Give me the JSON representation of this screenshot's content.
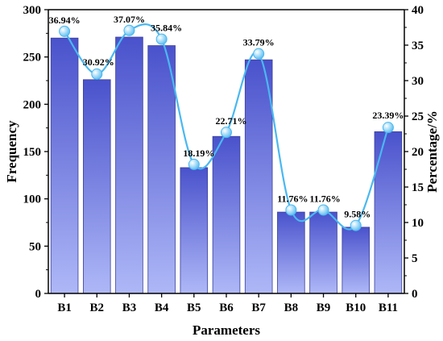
{
  "chart_data": {
    "type": "bar+line",
    "categories": [
      "B1",
      "B2",
      "B3",
      "B4",
      "B5",
      "B6",
      "B7",
      "B8",
      "B9",
      "B10",
      "B11"
    ],
    "series": [
      {
        "name": "Frequency",
        "type": "bar",
        "axis": "left",
        "values": [
          270,
          226,
          271,
          262,
          133,
          166,
          247,
          86,
          86,
          70,
          171
        ]
      },
      {
        "name": "Percentage/%",
        "type": "line",
        "axis": "right",
        "values": [
          36.94,
          30.92,
          37.07,
          35.84,
          18.19,
          22.71,
          33.79,
          11.76,
          11.76,
          9.58,
          23.39
        ],
        "labels": [
          "36.94%",
          "30.92%",
          "37.07%",
          "35.84%",
          "18.19%",
          "22.71%",
          "33.79%",
          "11.76%",
          "11.76%",
          "9.58%",
          "23.39%"
        ]
      }
    ],
    "xlabel": "Parameters",
    "ylabel": "Frequency",
    "y2label": "Percentage/%",
    "ylim": [
      0,
      300
    ],
    "y2lim": [
      0,
      40
    ],
    "yticks": [
      0,
      50,
      100,
      150,
      200,
      250,
      300
    ],
    "y2ticks": [
      0,
      5,
      10,
      15,
      20,
      25,
      30,
      35,
      40
    ],
    "grid": false,
    "colors": {
      "bar_top": "#4a52cc",
      "bar_bottom": "#aeb8f7",
      "line": "#4ab8f0",
      "marker": "#9fdcf7"
    }
  }
}
